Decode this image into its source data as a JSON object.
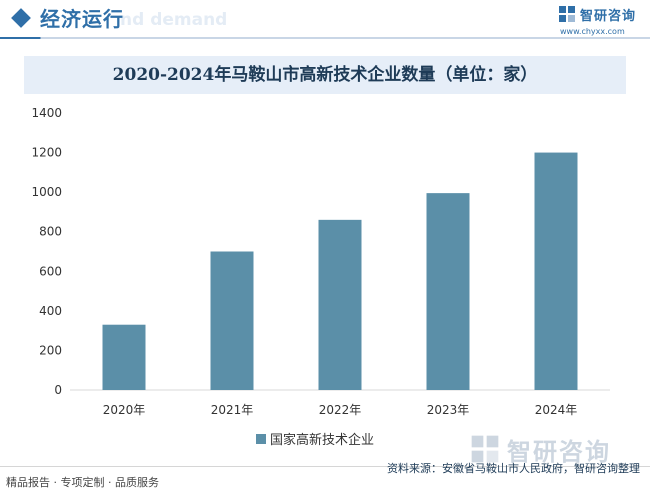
{
  "header": {
    "section_title": "经济运行",
    "ghost_text": "nd demand",
    "brand_name": "智研咨询",
    "brand_url": "www.chyxx.com"
  },
  "colors": {
    "accent": "#2f6fa8",
    "bar": "#5b8fa8",
    "title_band": "#e6eef8"
  },
  "chart_data": {
    "type": "bar",
    "title": "2020-2024年马鞍山市高新技术企业数量（单位：家）",
    "categories": [
      "2020年",
      "2021年",
      "2022年",
      "2023年",
      "2024年"
    ],
    "series": [
      {
        "name": "国家高新技术企业",
        "values": [
          330,
          700,
          860,
          995,
          1200
        ]
      }
    ],
    "ylim": [
      0,
      1400
    ],
    "yticks": [
      0,
      200,
      400,
      600,
      800,
      1000,
      1200,
      1400
    ],
    "grid": false,
    "legend_position": "bottom"
  },
  "footer": {
    "tags": "精品报告 · 专项定制 · 品质服务",
    "source": "资料来源：安徽省马鞍山市人民政府，智研咨询整理",
    "brand_name": "智研咨询"
  }
}
